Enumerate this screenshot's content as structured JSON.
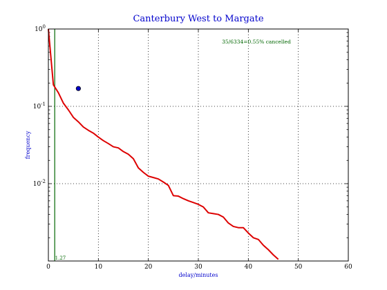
{
  "chart_data": {
    "type": "line",
    "title": "Canterbury West to Margate",
    "xlabel": "delay/minutes",
    "ylabel": "frequency",
    "y_scale": "log",
    "xlim": [
      0,
      60
    ],
    "ylim": [
      0.001,
      1.0
    ],
    "x_ticks": [
      0,
      10,
      20,
      30,
      40,
      50,
      60
    ],
    "x_tick_labels": [
      "0",
      "10",
      "20",
      "30",
      "40",
      "50",
      "60"
    ],
    "y_ticks": [
      1.0,
      0.1,
      0.01
    ],
    "y_tick_labels": [
      {
        "base": "10",
        "exp": "0"
      },
      {
        "base": "10",
        "exp": "-1"
      },
      {
        "base": "10",
        "exp": "-2"
      }
    ],
    "grid": true,
    "annotation": "35/6334=0.55% cancelled",
    "series": [
      {
        "color": "#dd0000",
        "x": [
          0,
          1,
          2,
          3,
          4,
          5,
          6,
          7,
          8,
          9,
          10,
          11,
          12,
          13,
          14,
          15,
          16,
          17,
          18,
          19,
          20,
          21,
          22,
          23,
          24,
          25,
          26,
          27,
          28,
          29,
          30,
          31,
          32,
          33,
          34,
          35,
          36,
          37,
          38,
          39,
          40,
          41,
          42,
          43,
          44,
          45,
          46
        ],
        "y": [
          1.0,
          0.19,
          0.15,
          0.11,
          0.09,
          0.072,
          0.063,
          0.054,
          0.049,
          0.045,
          0.04,
          0.036,
          0.033,
          0.03,
          0.029,
          0.026,
          0.024,
          0.021,
          0.016,
          0.014,
          0.0125,
          0.012,
          0.0115,
          0.0105,
          0.0095,
          0.007,
          0.0069,
          0.0064,
          0.006,
          0.0057,
          0.0054,
          0.005,
          0.0042,
          0.0041,
          0.004,
          0.0037,
          0.0031,
          0.0028,
          0.0027,
          0.0027,
          0.0023,
          0.002,
          0.0019,
          0.0016,
          0.0014,
          0.0012,
          0.00105
        ]
      }
    ],
    "marker": {
      "x": 6,
      "y": 0.17,
      "color": "#0000cc"
    },
    "mean_line": {
      "x": 1.27,
      "label": "1.27",
      "color": "#006600"
    }
  }
}
